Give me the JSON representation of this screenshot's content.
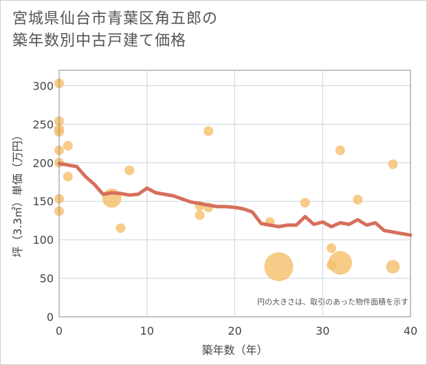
{
  "header": {
    "title": "宮城県仙台市青葉区角五郎の\n築年数別中古戸建て価格"
  },
  "chart_data": {
    "type": "scatter",
    "title": "宮城県仙台市青葉区角五郎の築年数別中古戸建て価格",
    "xlabel": "築年数（年）",
    "ylabel": "坪（3.3㎡）単価（万円）",
    "xlim": [
      0,
      40
    ],
    "ylim": [
      0,
      320
    ],
    "xticks": [
      0,
      10,
      20,
      30,
      40
    ],
    "yticks": [
      0,
      50,
      100,
      150,
      200,
      250,
      300
    ],
    "grid": true,
    "annotation": "円の大きさは、取引のあった物件面積を示す",
    "colors": {
      "points": "#f5c06e",
      "line": "#d66f5c",
      "grid": "#c9d3dc",
      "border": "#8a8a8a"
    },
    "points": [
      {
        "x": 0,
        "y": 303,
        "size": 1
      },
      {
        "x": 0,
        "y": 254,
        "size": 1
      },
      {
        "x": 0,
        "y": 244,
        "size": 1
      },
      {
        "x": 0,
        "y": 240,
        "size": 1
      },
      {
        "x": 0,
        "y": 216,
        "size": 1
      },
      {
        "x": 0,
        "y": 200,
        "size": 1
      },
      {
        "x": 0,
        "y": 153,
        "size": 1
      },
      {
        "x": 0,
        "y": 137,
        "size": 1
      },
      {
        "x": 1,
        "y": 222,
        "size": 1
      },
      {
        "x": 1,
        "y": 182,
        "size": 1
      },
      {
        "x": 6,
        "y": 154,
        "size": 4
      },
      {
        "x": 7,
        "y": 115,
        "size": 1
      },
      {
        "x": 8,
        "y": 190,
        "size": 1
      },
      {
        "x": 16,
        "y": 144,
        "size": 1
      },
      {
        "x": 16,
        "y": 132,
        "size": 1
      },
      {
        "x": 17,
        "y": 241,
        "size": 1
      },
      {
        "x": 17,
        "y": 142,
        "size": 1
      },
      {
        "x": 24,
        "y": 123,
        "size": 1
      },
      {
        "x": 25,
        "y": 65,
        "size": 9
      },
      {
        "x": 28,
        "y": 148,
        "size": 1
      },
      {
        "x": 31,
        "y": 89,
        "size": 1
      },
      {
        "x": 31,
        "y": 67,
        "size": 1
      },
      {
        "x": 32,
        "y": 216,
        "size": 1
      },
      {
        "x": 32,
        "y": 70,
        "size": 6
      },
      {
        "x": 34,
        "y": 152,
        "size": 1
      },
      {
        "x": 38,
        "y": 198,
        "size": 1
      },
      {
        "x": 38,
        "y": 65,
        "size": 2
      }
    ],
    "trend": {
      "x": [
        0,
        1,
        2,
        3,
        4,
        5,
        6,
        7,
        8,
        9,
        10,
        11,
        12,
        13,
        14,
        15,
        16,
        17,
        18,
        19,
        20,
        21,
        22,
        23,
        24,
        25,
        26,
        27,
        28,
        29,
        30,
        31,
        32,
        33,
        34,
        35,
        36,
        37,
        38,
        39,
        40
      ],
      "y": [
        199,
        197,
        195,
        182,
        172,
        159,
        161,
        160,
        158,
        159,
        167,
        161,
        159,
        157,
        153,
        149,
        147,
        145,
        143,
        143,
        142,
        140,
        136,
        121,
        119,
        117,
        119,
        119,
        130,
        120,
        123,
        117,
        122,
        120,
        126,
        119,
        122,
        112,
        110,
        108,
        106
      ]
    }
  }
}
